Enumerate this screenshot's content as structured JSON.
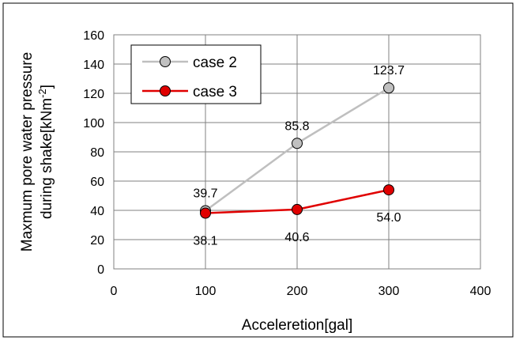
{
  "chart_data": {
    "type": "line",
    "title": "",
    "xlabel": "Acceleretion[gal]",
    "ylabel_line1": "Maxmum pore water pressure",
    "ylabel_line2_prefix": "during shake[kNm",
    "ylabel_superscript": "-2",
    "ylabel_line2_suffix": "]",
    "xlim": [
      0,
      400
    ],
    "ylim": [
      0,
      160
    ],
    "x_ticks": [
      0,
      100,
      200,
      300,
      400
    ],
    "y_ticks": [
      0,
      20,
      40,
      60,
      80,
      100,
      120,
      140,
      160
    ],
    "x_tick_labels": [
      "0",
      "100",
      "200",
      "300",
      "400"
    ],
    "y_tick_labels": [
      "0",
      "20",
      "40",
      "60",
      "80",
      "100",
      "120",
      "140",
      "160"
    ],
    "grid": true,
    "legend_position": "top-left",
    "series": [
      {
        "name": "case 2",
        "color": "#bfbfbf",
        "marker_fill": "#c0c0c0",
        "x": [
          100,
          200,
          300
        ],
        "y": [
          39.7,
          85.8,
          123.7
        ],
        "labels": [
          "39.7",
          "85.8",
          "123.7"
        ],
        "label_side": "above"
      },
      {
        "name": "case 3",
        "color": "#e00000",
        "marker_fill": "#e00000",
        "x": [
          100,
          200,
          300
        ],
        "y": [
          38.1,
          40.6,
          54.0
        ],
        "labels": [
          "38.1",
          "40.6",
          "54.0"
        ],
        "label_side": "below"
      }
    ]
  }
}
